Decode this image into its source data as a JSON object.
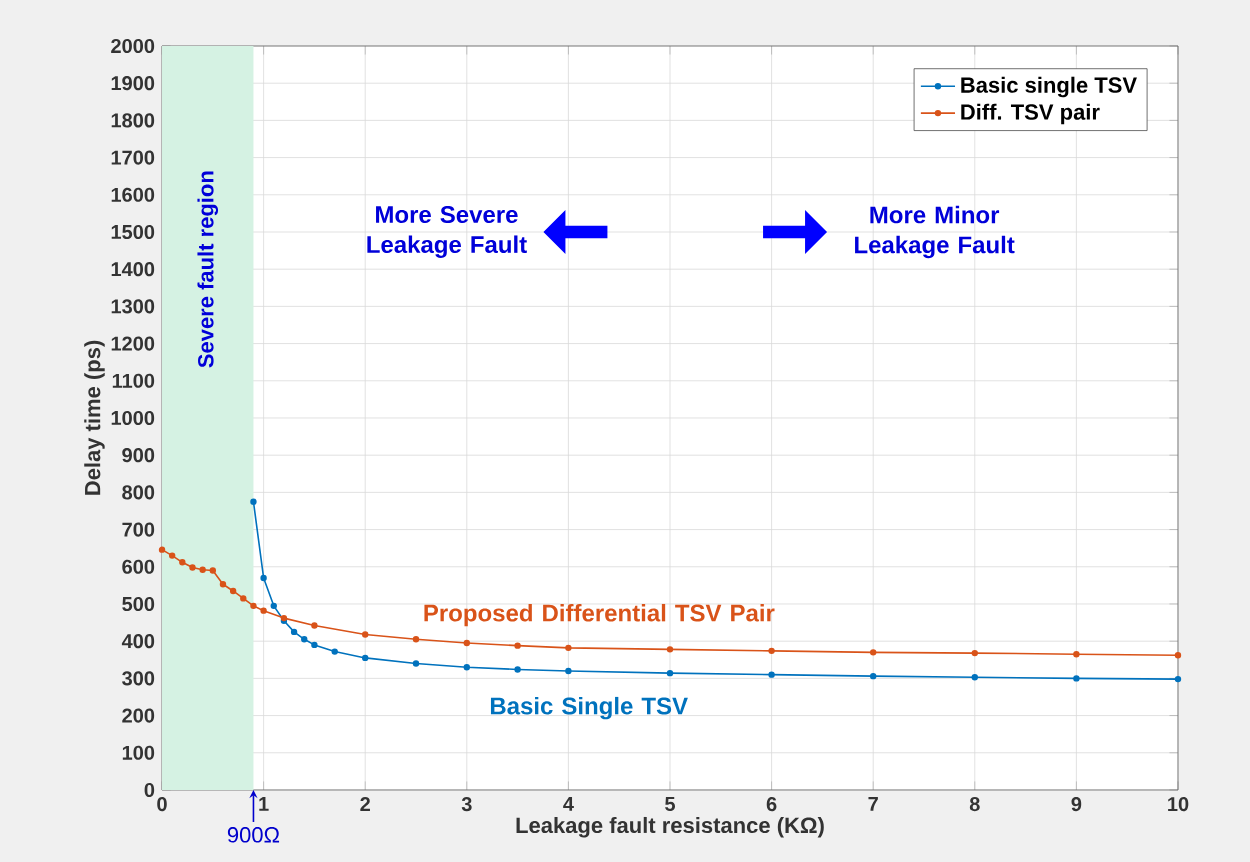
{
  "chart_data": {
    "type": "line",
    "xlabel": "Leakage fault resistance (KΩ)",
    "ylabel": "Delay time (ps)",
    "xlim": [
      0,
      10
    ],
    "ylim": [
      0,
      2000
    ],
    "xticks": [
      0,
      1,
      2,
      3,
      4,
      5,
      6,
      7,
      8,
      9,
      10
    ],
    "yticks": [
      0,
      100,
      200,
      300,
      400,
      500,
      600,
      700,
      800,
      900,
      1000,
      1100,
      1200,
      1300,
      1400,
      1500,
      1600,
      1700,
      1800,
      1900,
      2000
    ],
    "grid": true,
    "legend": "top right",
    "marker": "circle",
    "line_style": "solid",
    "series": [
      {
        "name": "Basic single TSV",
        "color": "#0072bd",
        "x": [
          0.9,
          1.0,
          1.1,
          1.2,
          1.3,
          1.4,
          1.5,
          1.7,
          2,
          2.5,
          3,
          3.5,
          4,
          5,
          6,
          7,
          8,
          9,
          10
        ],
        "values": [
          775,
          570,
          495,
          455,
          425,
          405,
          390,
          372,
          355,
          340,
          330,
          324,
          320,
          314,
          310,
          306,
          303,
          300,
          298
        ]
      },
      {
        "name": "Diff. TSV pair",
        "color": "#d95319",
        "x": [
          0,
          0.1,
          0.2,
          0.3,
          0.4,
          0.5,
          0.6,
          0.7,
          0.8,
          0.9,
          1.0,
          1.2,
          1.5,
          2,
          2.5,
          3,
          3.5,
          4,
          5,
          6,
          7,
          8,
          9,
          10
        ],
        "values": [
          646,
          630,
          612,
          598,
          592,
          590,
          553,
          535,
          515,
          495,
          482,
          462,
          442,
          418,
          405,
          395,
          388,
          382,
          378,
          374,
          370,
          368,
          365,
          362
        ]
      }
    ],
    "bands": [
      {
        "axis": "x",
        "from": 0,
        "to": 0.9,
        "label": "Severe fault region",
        "color": "#d5f2e3"
      }
    ],
    "annotations": [
      "More Severe Leakage Fault",
      "More Minor Leakage Fault",
      "Proposed Differential TSV Pair",
      "Basic Single TSV",
      {
        "text": "900Ω",
        "x": 0.9,
        "y": 0
      }
    ]
  }
}
